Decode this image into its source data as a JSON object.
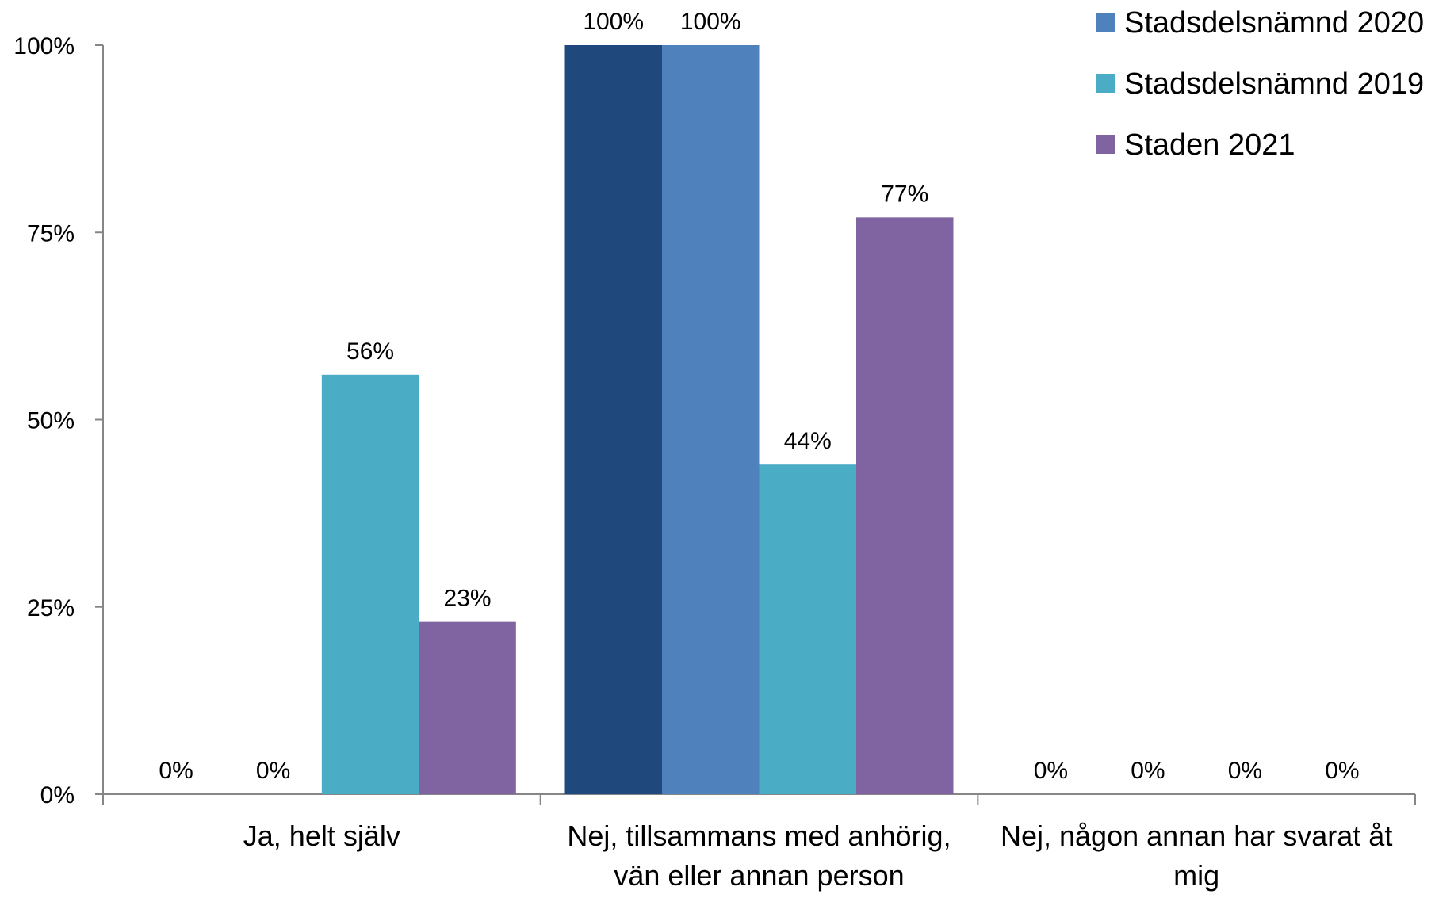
{
  "chart_data": {
    "type": "bar",
    "title": "",
    "xlabel": "",
    "ylabel": "",
    "ylim": [
      0,
      100
    ],
    "y_ticks": [
      "0%",
      "25%",
      "50%",
      "75%",
      "100%"
    ],
    "y_tick_values": [
      0,
      25,
      50,
      75,
      100
    ],
    "categories": [
      [
        "Ja, helt själv"
      ],
      [
        "Nej, tillsammans med anhörig,",
        "vän eller annan person"
      ],
      [
        "Nej, någon annan har svarat åt",
        "mig"
      ]
    ],
    "series": [
      {
        "name": "",
        "color": "#1F497D",
        "values": [
          0,
          100,
          0
        ],
        "labels": [
          "0%",
          "100%",
          "0%"
        ]
      },
      {
        "name": "Stadsdelsnämnd 2020",
        "color": "#4F81BD",
        "values": [
          0,
          100,
          0
        ],
        "labels": [
          "0%",
          "100%",
          "0%"
        ]
      },
      {
        "name": "Stadsdelsnämnd 2019",
        "color": "#4BACC6",
        "values": [
          56,
          44,
          0
        ],
        "labels": [
          "56%",
          "44%",
          "0%"
        ]
      },
      {
        "name": "Staden 2021",
        "color": "#8064A2",
        "values": [
          23,
          77,
          0
        ],
        "labels": [
          "23%",
          "77%",
          "0%"
        ]
      }
    ],
    "legend_position": "top-right",
    "grid": false,
    "axis_color": "#868686"
  }
}
